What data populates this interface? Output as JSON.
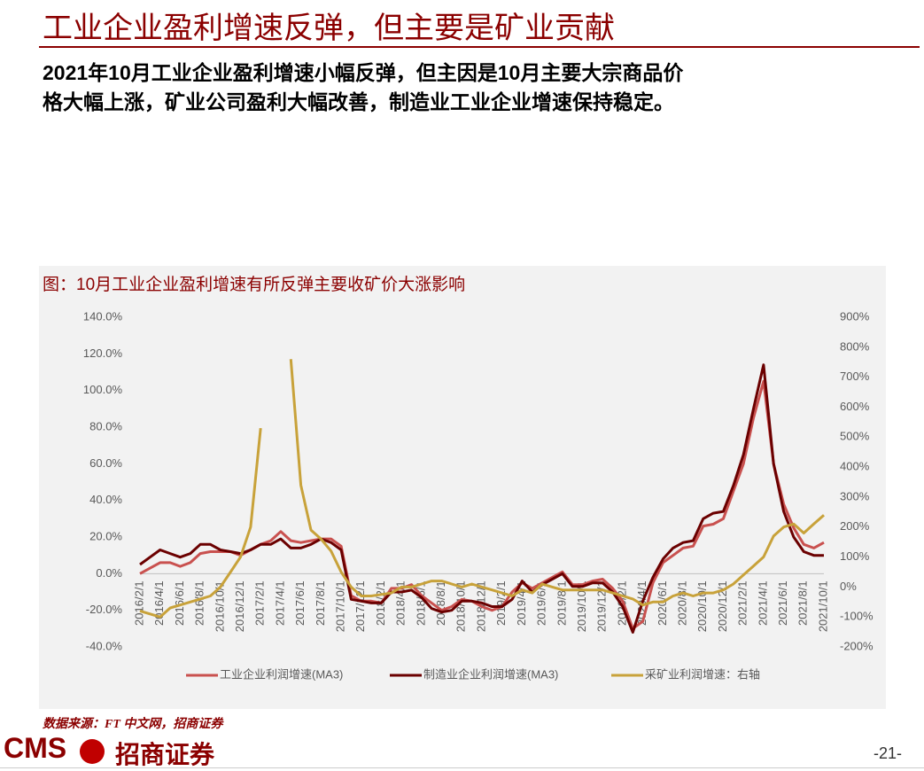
{
  "header": {
    "title": "工业企业盈利增速反弹，但主要是矿业贡献"
  },
  "body": {
    "lines": [
      "2021年10月工业企业盈利增速小幅反弹，但主因是10月主要大宗商品价",
      "格大幅上涨，矿业公司盈利大幅改善，制造业工业企业增速保持稳定。"
    ]
  },
  "chart_data": {
    "type": "line",
    "title": "图：10月工业企业盈利增速有所反弹主要收矿价大涨影响",
    "categories": [
      "2016/2/1",
      null,
      "2016/4/1",
      null,
      "2016/6/1",
      null,
      "2016/8/1",
      null,
      "2016/10/1",
      null,
      "2016/12/1",
      null,
      "2017/2/1",
      null,
      "2017/4/1",
      null,
      "2017/6/1",
      null,
      "2017/8/1",
      null,
      "2017/10/1",
      null,
      "2017/12/1",
      null,
      "2018/2/1",
      null,
      "2018/4/1",
      null,
      "2018/6/1",
      null,
      "2018/8/1",
      null,
      "2018/10/1",
      null,
      "2018/12/1",
      null,
      "2019/2/1",
      null,
      "2019/4/1",
      null,
      "2019/6/1",
      null,
      "2019/8/1",
      null,
      "2019/10/1",
      null,
      "2019/12/1",
      null,
      "2020/2/1",
      null,
      "2020/4/1",
      null,
      "2020/6/1",
      null,
      "2020/8/1",
      null,
      "2020/10/1",
      null,
      "2020/12/1",
      null,
      "2021/2/1",
      null,
      "2021/4/1",
      null,
      "2021/6/1",
      null,
      "2021/8/1",
      null,
      "2021/10/1"
    ],
    "series": [
      {
        "name": "工业企业利润增速(MA3)",
        "color": "#c9514f",
        "values": [
          0,
          3,
          6,
          6,
          4,
          6,
          11,
          12,
          12,
          12,
          10,
          13,
          16,
          18,
          23,
          18,
          17,
          18,
          19,
          19,
          15,
          -12,
          -15,
          -15,
          -16,
          -8,
          -8,
          -6,
          -12,
          -16,
          -20,
          -18,
          -14,
          -15,
          -18,
          -20,
          -18,
          -10,
          -5,
          -8,
          -5,
          -2,
          1,
          -6,
          -6,
          -4,
          -3,
          -8,
          -15,
          -30,
          -26,
          -5,
          6,
          10,
          14,
          15,
          26,
          27,
          30,
          45,
          60,
          85,
          105,
          60,
          38,
          25,
          16,
          14,
          17
        ]
      },
      {
        "name": "制造业企业利润增速(MA3)",
        "color": "#6b0000",
        "values": [
          5,
          9,
          13,
          11,
          9,
          11,
          16,
          16,
          13,
          12,
          11,
          13,
          16,
          16,
          19,
          14,
          14,
          16,
          19,
          17,
          13,
          -14,
          -15,
          -16,
          -16,
          -10,
          -10,
          -9,
          -13,
          -19,
          -21,
          -20,
          -15,
          -15,
          -16,
          -18,
          -18,
          -14,
          -4,
          -10,
          -6,
          -3,
          0,
          -7,
          -7,
          -5,
          -5,
          -10,
          -18,
          -32,
          -15,
          -2,
          8,
          14,
          17,
          18,
          30,
          33,
          34,
          48,
          65,
          90,
          114,
          60,
          34,
          20,
          12,
          10,
          10
        ]
      },
      {
        "name": "采矿业利润增速：右轴",
        "color": "#c8a23a",
        "axis": "y2",
        "values": [
          -80,
          -90,
          -100,
          -70,
          -60,
          -50,
          -40,
          -30,
          0,
          50,
          100,
          200,
          530,
          null,
          null,
          760,
          340,
          190,
          160,
          120,
          50,
          0,
          -30,
          -30,
          -25,
          -20,
          0,
          0,
          10,
          20,
          20,
          10,
          0,
          10,
          0,
          -10,
          -20,
          -30,
          -10,
          -20,
          10,
          0,
          -10,
          -10,
          -10,
          -10,
          -10,
          -20,
          -30,
          -40,
          -60,
          -50,
          -50,
          -30,
          -20,
          -30,
          -20,
          -20,
          -10,
          10,
          40,
          70,
          100,
          170,
          200,
          210,
          180,
          210,
          240
        ]
      }
    ],
    "ylim": [
      -40,
      140
    ],
    "yticks": [
      {
        "value": -40,
        "label": "-40.0%"
      },
      {
        "value": -20,
        "label": "-20.0%"
      },
      {
        "value": 0,
        "label": "0.0%"
      },
      {
        "value": 20,
        "label": "20.0%"
      },
      {
        "value": 40,
        "label": "40.0%"
      },
      {
        "value": 60,
        "label": "60.0%"
      },
      {
        "value": 80,
        "label": "80.0%"
      },
      {
        "value": 100,
        "label": "100.0%"
      },
      {
        "value": 120,
        "label": "120.0%"
      },
      {
        "value": 140,
        "label": "140.0%"
      }
    ],
    "y2lim": [
      -200,
      900
    ],
    "y2ticks": [
      {
        "value": -200,
        "label": "-200%"
      },
      {
        "value": -100,
        "label": "-100%"
      },
      {
        "value": 0,
        "label": "0%"
      },
      {
        "value": 100,
        "label": "100%"
      },
      {
        "value": 200,
        "label": "200%"
      },
      {
        "value": 300,
        "label": "300%"
      },
      {
        "value": 400,
        "label": "400%"
      },
      {
        "value": 500,
        "label": "500%"
      },
      {
        "value": 600,
        "label": "600%"
      },
      {
        "value": 700,
        "label": "700%"
      },
      {
        "value": 800,
        "label": "800%"
      },
      {
        "value": 900,
        "label": "900%"
      }
    ],
    "legend": "bottom",
    "grid": false
  },
  "source": "数据来源：FT 中文网，招商证券",
  "footer": {
    "logo": "CMS",
    "brand": "招商证券",
    "page": "-21-"
  }
}
